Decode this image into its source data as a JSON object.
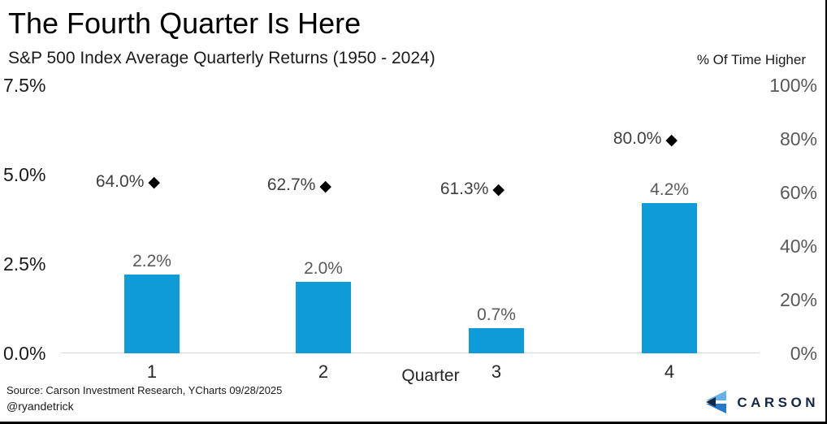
{
  "header": {
    "title": "The Fourth Quarter Is Here",
    "subtitle": "S&P 500 Index Average Quarterly Returns (1950 - 2024)",
    "right_axis_title": "% Of Time Higher"
  },
  "chart_data": {
    "type": "bar",
    "categories": [
      "1",
      "2",
      "3",
      "4"
    ],
    "xlabel": "Quarter",
    "series": [
      {
        "name": "Average Quarterly Return",
        "type": "bar",
        "axis": "left",
        "values": [
          2.2,
          2.0,
          0.7,
          4.2
        ],
        "labels": [
          "2.2%",
          "2.0%",
          "0.7%",
          "4.2%"
        ],
        "color": "#0f9bd7"
      },
      {
        "name": "% Of Time Higher",
        "type": "scatter",
        "marker": "diamond",
        "axis": "right",
        "values": [
          64.0,
          62.7,
          61.3,
          80.0
        ],
        "labels": [
          "64.0%",
          "62.7%",
          "61.3%",
          "80.0%"
        ],
        "color": "#000000"
      }
    ],
    "left_axis": {
      "ticks": [
        "0.0%",
        "2.5%",
        "5.0%",
        "7.5%"
      ],
      "values": [
        0,
        2.5,
        5,
        7.5
      ],
      "range": [
        0,
        7.5
      ]
    },
    "right_axis": {
      "ticks": [
        "0%",
        "20%",
        "40%",
        "60%",
        "80%",
        "100%"
      ],
      "values": [
        0,
        20,
        40,
        60,
        80,
        100
      ],
      "range": [
        0,
        100
      ]
    },
    "grid": false,
    "legend": "none"
  },
  "footer": {
    "source_line": "Source: Carson Investment Research, YCharts 09/28/2025",
    "handle": "@ryandetrick",
    "brand": "CARSON"
  },
  "colors": {
    "bar_blue": "#0f9bd7",
    "axis_line_gray": "#d9d9d9",
    "value_label_gray": "#595959",
    "marker_black": "#000000",
    "brand_navy": "#152742",
    "brand_light_blue": "#66b2e8",
    "brand_mid_blue": "#2478cc"
  }
}
